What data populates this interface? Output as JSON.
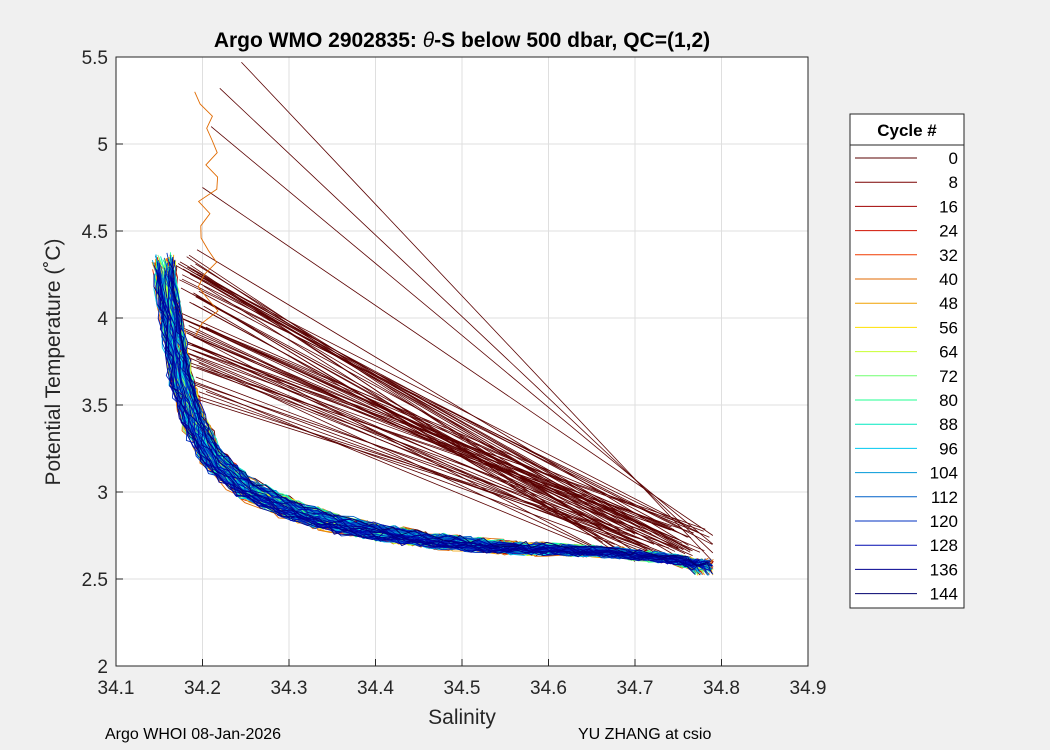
{
  "chart_data": {
    "type": "line",
    "title": "Argo WMO 2902835: θ-S below 500 dbar,  QC=(1,2)",
    "title_prefix": "Argo WMO 2902835: ",
    "title_theta": "θ",
    "title_suffix": "-S below 500 dbar,  QC=(1,2)",
    "xlabel": "Salinity",
    "ylabel": "Potential Temperature (˚C)",
    "xlim": [
      34.1,
      34.9
    ],
    "ylim": [
      2.0,
      5.5
    ],
    "xticks": [
      "34.1",
      "34.2",
      "34.3",
      "34.4",
      "34.5",
      "34.6",
      "34.7",
      "34.8",
      "34.9"
    ],
    "yticks": [
      "2",
      "2.5",
      "3",
      "3.5",
      "4",
      "4.5",
      "5",
      "5.5"
    ],
    "grid": true,
    "legend_title": "Cycle #",
    "legend_entries": [
      "0",
      "8",
      "16",
      "24",
      "32",
      "40",
      "48",
      "56",
      "64",
      "72",
      "80",
      "88",
      "96",
      "104",
      "112",
      "120",
      "128",
      "136",
      "144"
    ],
    "legend_colors": [
      "#5a0000",
      "#7a0000",
      "#a00000",
      "#d01000",
      "#f03a00",
      "#e06a00",
      "#f0a000",
      "#ffe000",
      "#c8ff30",
      "#70ff70",
      "#20ff90",
      "#00e8c0",
      "#00c8f0",
      "#0098d8",
      "#0060c8",
      "#0030c0",
      "#000ab0",
      "#00008f",
      "#00006e"
    ],
    "legend_position": "outside-right",
    "series_note": "Profiles for cycles 0–144 follow a common curve from about (34.15, 4.3) down to (34.78, 2.55)",
    "mean_curve": {
      "salinity": [
        34.155,
        34.165,
        34.175,
        34.19,
        34.21,
        34.25,
        34.3,
        34.35,
        34.4,
        34.45,
        34.5,
        34.55,
        34.6,
        34.65,
        34.7,
        34.75,
        34.78
      ],
      "theta": [
        4.3,
        3.95,
        3.65,
        3.4,
        3.2,
        3.02,
        2.9,
        2.82,
        2.77,
        2.73,
        2.7,
        2.68,
        2.67,
        2.66,
        2.64,
        2.61,
        2.57
      ]
    }
  },
  "footer": {
    "left": "Argo WHOI 08-Jan-2026",
    "right": "YU ZHANG at csio"
  },
  "colors": {
    "figure_bg": "#f0f0f0",
    "axes_bg": "#ffffff",
    "grid": "#dfdfdf",
    "connector": "#5a0000"
  }
}
